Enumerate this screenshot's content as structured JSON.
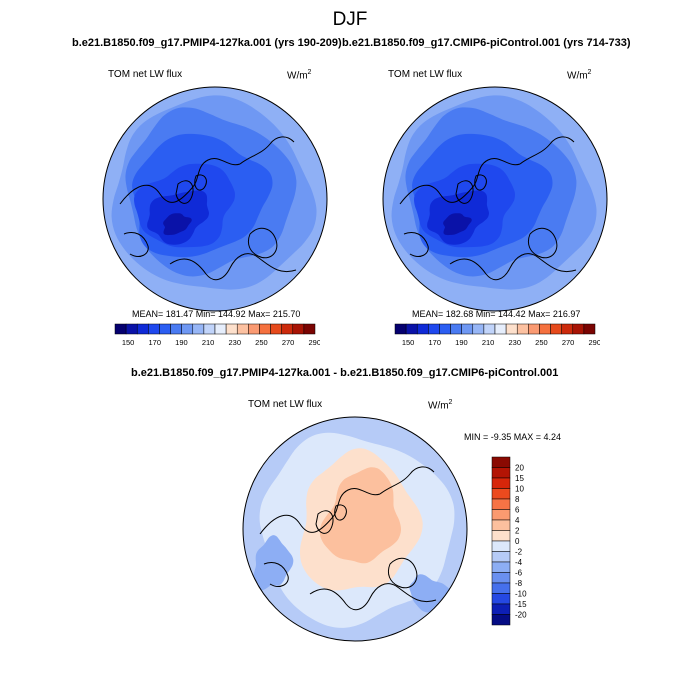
{
  "figure": {
    "title": "DJF"
  },
  "chart_data": [
    {
      "type": "heatmap",
      "projection": "polar-stereographic",
      "title": "b.e21.B1850.f09_g17.PMIP4-127ka.001 (yrs 190-209)",
      "left_label": "TOM net LW flux",
      "units_label": "W/m",
      "units_sup": "2",
      "stats": "MEAN= 181.47  Min= 144.92  Max= 215.70",
      "colorbar": {
        "labels": [
          "150",
          "170",
          "190",
          "210",
          "230",
          "250",
          "270",
          "290"
        ],
        "colors": [
          "#05006f",
          "#0a12a8",
          "#0f2ad7",
          "#1f48ee",
          "#2b5ef2",
          "#4a7bf2",
          "#6f98f3",
          "#97b6f6",
          "#c1d4fa",
          "#e6eefc",
          "#fde0cc",
          "#fcc1a1",
          "#fa9a72",
          "#f5713f",
          "#e64a1c",
          "#cc2a0c",
          "#a81405",
          "#7a0402"
        ]
      },
      "stat_values": {
        "mean": 181.47,
        "min": 144.92,
        "max": 215.7
      }
    },
    {
      "type": "heatmap",
      "projection": "polar-stereographic",
      "title": "b.e21.B1850.f09_g17.CMIP6-piControl.001 (yrs 714-733)",
      "left_label": "TOM net LW flux",
      "units_label": "W/m",
      "units_sup": "2",
      "stats": "MEAN= 182.68  Min= 144.42  Max= 216.97",
      "colorbar": {
        "labels": [
          "150",
          "170",
          "190",
          "210",
          "230",
          "250",
          "270",
          "290"
        ],
        "colors": [
          "#05006f",
          "#0a12a8",
          "#0f2ad7",
          "#1f48ee",
          "#2b5ef2",
          "#4a7bf2",
          "#6f98f3",
          "#97b6f6",
          "#c1d4fa",
          "#e6eefc",
          "#fde0cc",
          "#fcc1a1",
          "#fa9a72",
          "#f5713f",
          "#e64a1c",
          "#cc2a0c",
          "#a81405",
          "#7a0402"
        ]
      },
      "stat_values": {
        "mean": 182.68,
        "min": 144.42,
        "max": 216.97
      }
    },
    {
      "type": "heatmap",
      "projection": "polar-stereographic",
      "title": "b.e21.B1850.f09_g17.PMIP4-127ka.001 - b.e21.B1850.f09_g17.CMIP6-piControl.001",
      "left_label": "TOM net LW flux",
      "units_label": "W/m",
      "units_sup": "2",
      "stats": "MIN =  -9.35 MAX =   4.24",
      "stat_values": {
        "min": -9.35,
        "max": 4.24
      },
      "colorbar": {
        "orientation": "vertical",
        "labels": [
          "20",
          "15",
          "10",
          "8",
          "6",
          "4",
          "2",
          "0",
          "-2",
          "-4",
          "-6",
          "-8",
          "-10",
          "-15",
          "-20"
        ],
        "colors": [
          "#8a0a02",
          "#b31404",
          "#d7260a",
          "#ec4a1e",
          "#f77345",
          "#fb9a70",
          "#fcc09e",
          "#fde0cc",
          "#dce8fb",
          "#b6cbf7",
          "#8daef4",
          "#6a90f0",
          "#4670ec",
          "#2548e3",
          "#0d1fb5",
          "#050c84"
        ]
      }
    }
  ]
}
